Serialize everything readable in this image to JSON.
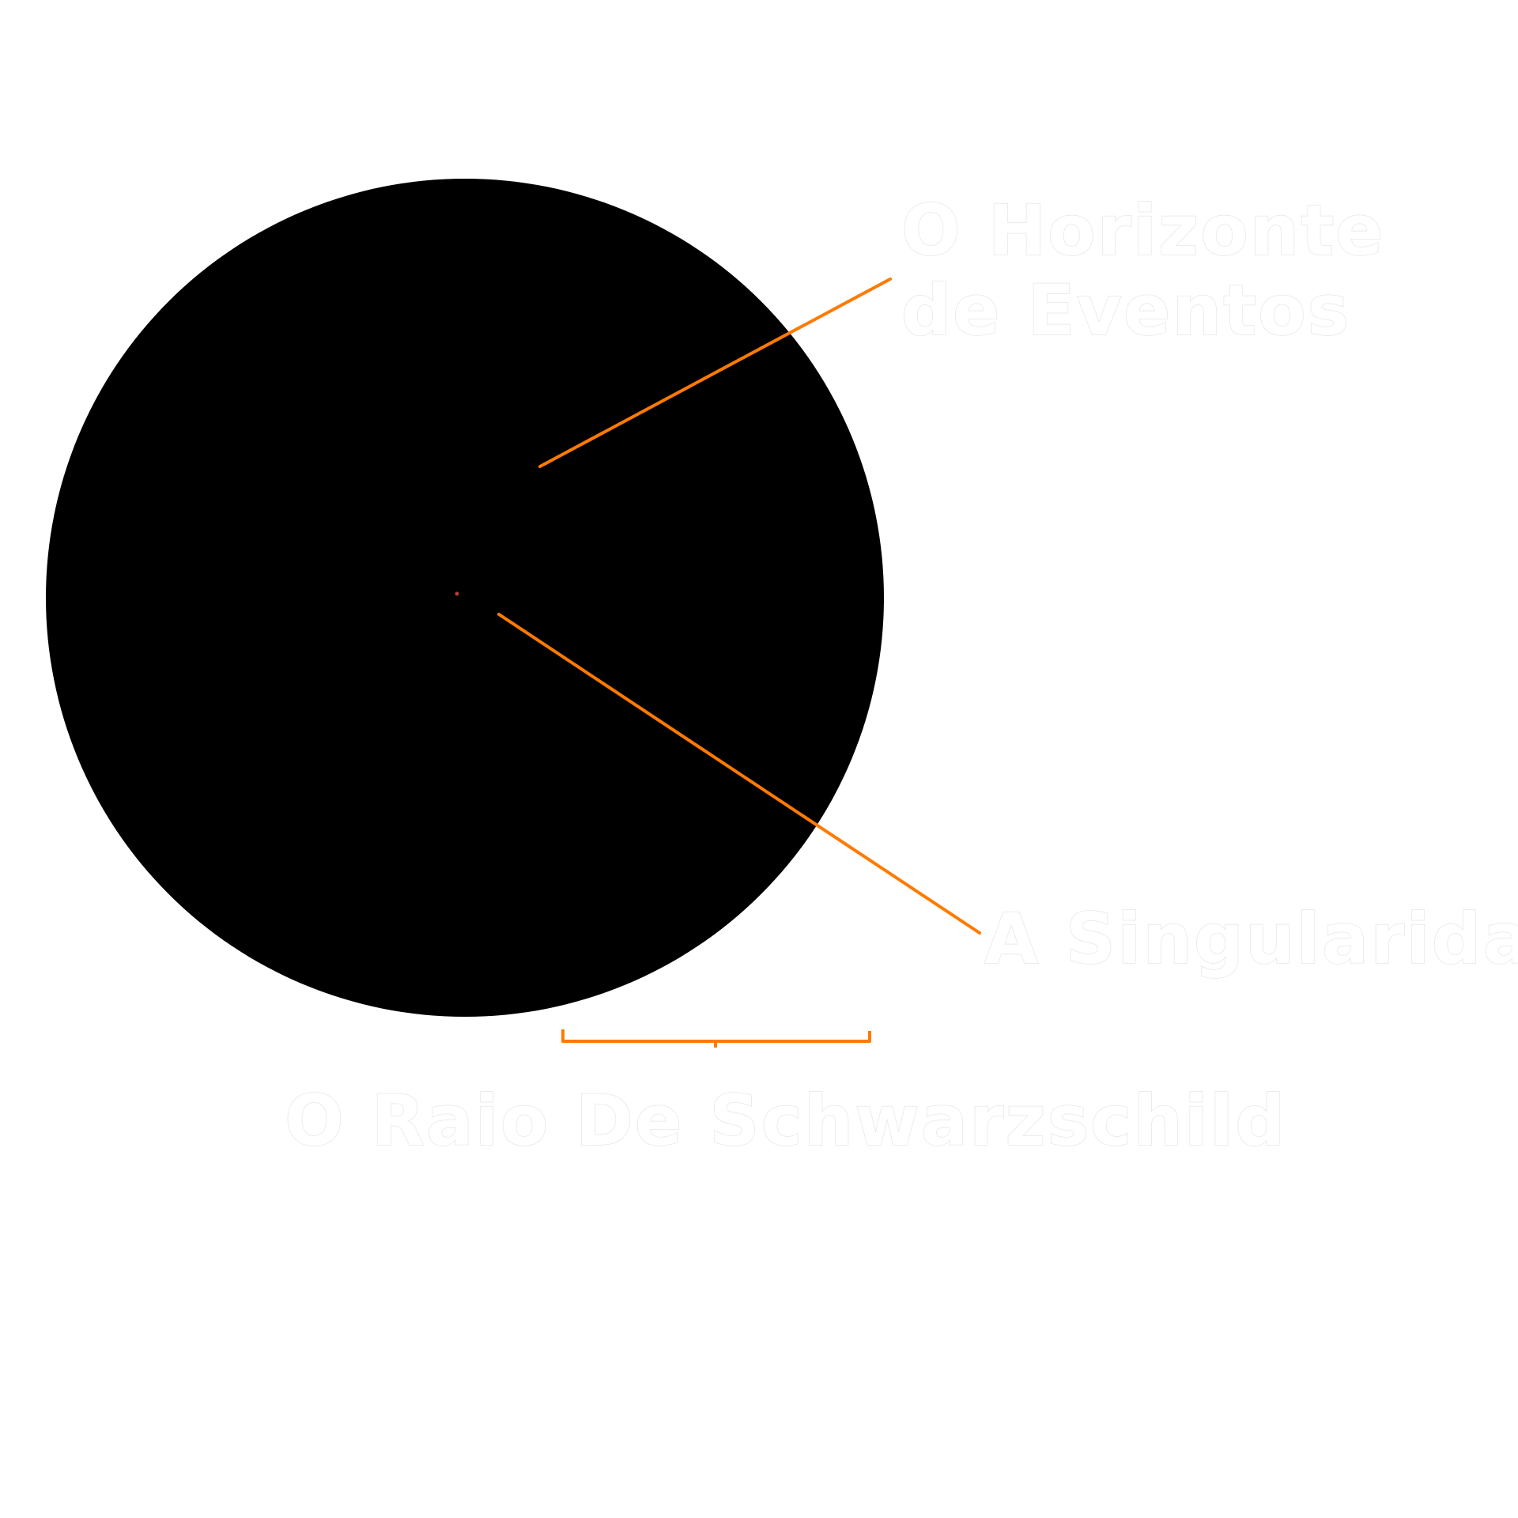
{
  "diagram": {
    "labels": {
      "event_horizon_line1": "O Horizonte",
      "event_horizon_line2": "de Eventos",
      "singularity": "A Singularidade",
      "schwarzschild_radius": "O Raio De Schwarzschild"
    },
    "colors": {
      "background": "#ffffff",
      "black_hole": "#000000",
      "callout": "#ff7a00",
      "singularity_dot": "#c0392b",
      "label_text": "#ffffff"
    }
  }
}
